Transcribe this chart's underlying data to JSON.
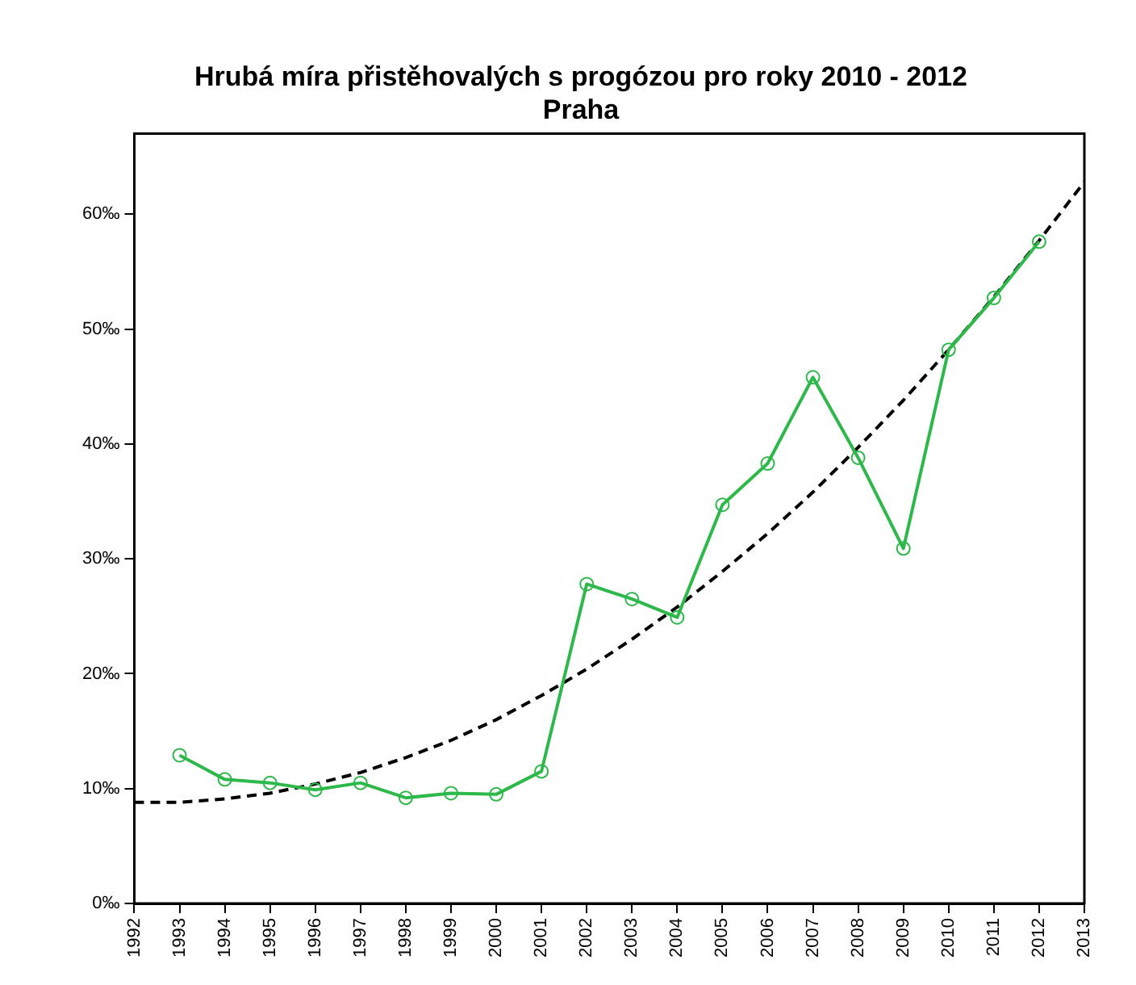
{
  "chart_data": {
    "type": "line",
    "title": "Hrubá míra přistěhovalých s progózou pro roky 2010 - 2012",
    "subtitle": "Praha",
    "xlim": [
      1992,
      2013
    ],
    "xticks": [
      1992,
      1993,
      1994,
      1995,
      1996,
      1997,
      1998,
      1999,
      2000,
      2001,
      2002,
      2003,
      2004,
      2005,
      2006,
      2007,
      2008,
      2009,
      2010,
      2011,
      2012,
      2013
    ],
    "ylim": [
      0,
      67
    ],
    "yticks": [
      {
        "value": 0,
        "label": "0‰"
      },
      {
        "value": 10,
        "label": "10‰"
      },
      {
        "value": 20,
        "label": "20‰"
      },
      {
        "value": 30,
        "label": "30‰"
      },
      {
        "value": 40,
        "label": "40‰"
      },
      {
        "value": 50,
        "label": "50‰"
      },
      {
        "value": 60,
        "label": "60‰"
      }
    ],
    "grid": false,
    "legend": false,
    "series": [
      {
        "color": "#2db84a",
        "marker": "circle",
        "line_style": "solid",
        "x": [
          1993,
          1994,
          1995,
          1996,
          1997,
          1998,
          1999,
          2000,
          2001,
          2002,
          2003,
          2004,
          2005,
          2006,
          2007,
          2008,
          2009,
          2010,
          2011,
          2012
        ],
        "values": [
          12.9,
          10.8,
          10.5,
          9.9,
          10.5,
          9.2,
          9.6,
          9.5,
          11.5,
          27.8,
          26.5,
          24.9,
          34.7,
          38.3,
          45.8,
          38.8,
          30.9,
          48.2,
          52.7,
          57.6
        ]
      },
      {
        "color": "#000000",
        "marker": "none",
        "line_style": "dashed",
        "x": [
          1992,
          1993,
          1994,
          1995,
          1996,
          1997,
          1998,
          1999,
          2000,
          2001,
          2002,
          2003,
          2004,
          2005,
          2006,
          2007,
          2008,
          2009,
          2010,
          2011,
          2012,
          2013
        ],
        "values": [
          8.8,
          8.8,
          9.1,
          9.6,
          10.4,
          11.4,
          12.7,
          14.2,
          16.0,
          18.1,
          20.4,
          23.0,
          25.8,
          28.9,
          32.2,
          35.8,
          39.7,
          43.8,
          48.2,
          52.8,
          57.7,
          62.8
        ]
      }
    ]
  }
}
